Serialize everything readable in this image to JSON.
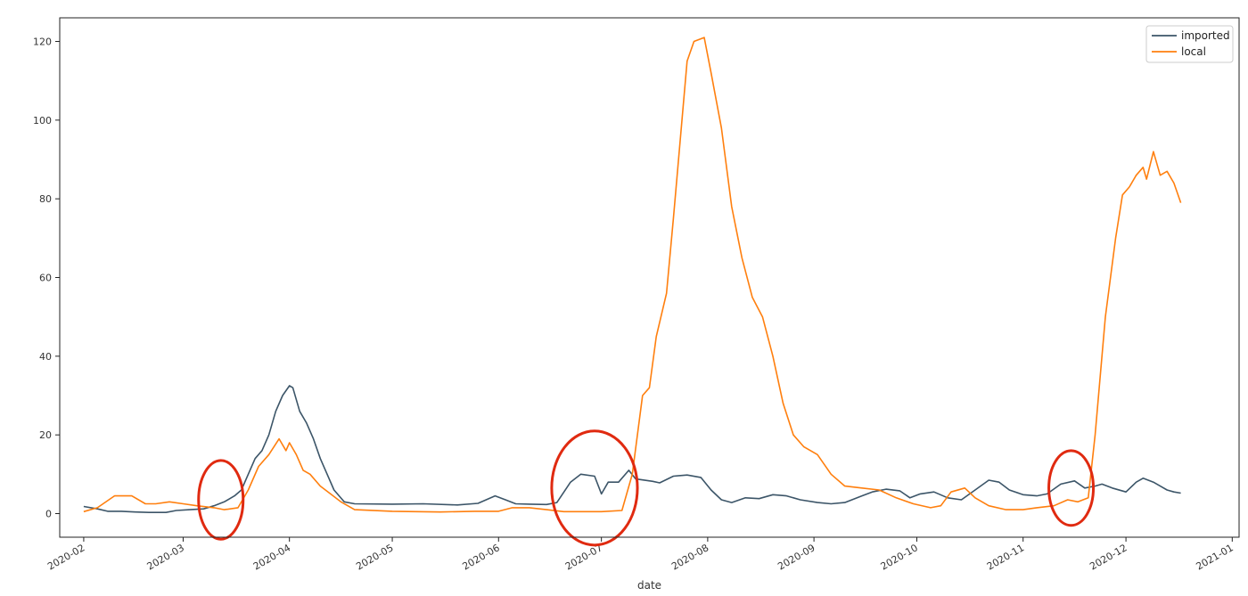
{
  "chart_data": {
    "type": "line",
    "xlabel": "date",
    "ylabel": "",
    "title": "",
    "x_ticks": [
      "2020-02",
      "2020-03",
      "2020-04",
      "2020-05",
      "2020-06",
      "2020-07",
      "2020-08",
      "2020-09",
      "2020-10",
      "2020-11",
      "2020-12",
      "2021-01"
    ],
    "y_ticks": [
      "0",
      "20",
      "40",
      "60",
      "80",
      "100",
      "120"
    ],
    "xlim": [
      "2020-01-25",
      "2021-01-03"
    ],
    "ylim": [
      -6,
      126
    ],
    "grid": false,
    "legend": "top-right",
    "series": [
      {
        "name": "imported",
        "color": "#3c5568",
        "points": [
          [
            "2020-02-01",
            1.8
          ],
          [
            "2020-02-05",
            1.2
          ],
          [
            "2020-02-08",
            0.6
          ],
          [
            "2020-02-12",
            0.6
          ],
          [
            "2020-02-16",
            0.4
          ],
          [
            "2020-02-20",
            0.3
          ],
          [
            "2020-02-25",
            0.3
          ],
          [
            "2020-02-28",
            0.8
          ],
          [
            "2020-03-03",
            1.0
          ],
          [
            "2020-03-07",
            1.2
          ],
          [
            "2020-03-10",
            2.0
          ],
          [
            "2020-03-13",
            3.0
          ],
          [
            "2020-03-16",
            4.5
          ],
          [
            "2020-03-18",
            6.0
          ],
          [
            "2020-03-20",
            10
          ],
          [
            "2020-03-22",
            14
          ],
          [
            "2020-03-24",
            16
          ],
          [
            "2020-03-26",
            20
          ],
          [
            "2020-03-28",
            26
          ],
          [
            "2020-03-30",
            30
          ],
          [
            "2020-04-01",
            32.5
          ],
          [
            "2020-04-02",
            32
          ],
          [
            "2020-04-04",
            26
          ],
          [
            "2020-04-06",
            23
          ],
          [
            "2020-04-08",
            19
          ],
          [
            "2020-04-10",
            14
          ],
          [
            "2020-04-12",
            10
          ],
          [
            "2020-04-14",
            6
          ],
          [
            "2020-04-17",
            3
          ],
          [
            "2020-04-20",
            2.5
          ],
          [
            "2020-05-01",
            2.4
          ],
          [
            "2020-05-10",
            2.5
          ],
          [
            "2020-05-20",
            2.2
          ],
          [
            "2020-05-26",
            2.6
          ],
          [
            "2020-05-31",
            4.5
          ],
          [
            "2020-06-03",
            3.5
          ],
          [
            "2020-06-06",
            2.5
          ],
          [
            "2020-06-10",
            2.4
          ],
          [
            "2020-06-15",
            2.3
          ],
          [
            "2020-06-18",
            2.8
          ],
          [
            "2020-06-22",
            8
          ],
          [
            "2020-06-25",
            10
          ],
          [
            "2020-06-29",
            9.5
          ],
          [
            "2020-07-01",
            5
          ],
          [
            "2020-07-03",
            8
          ],
          [
            "2020-07-06",
            8
          ],
          [
            "2020-07-09",
            11
          ],
          [
            "2020-07-11",
            8.8
          ],
          [
            "2020-07-16",
            8.2
          ],
          [
            "2020-07-18",
            7.8
          ],
          [
            "2020-07-22",
            9.5
          ],
          [
            "2020-07-26",
            9.8
          ],
          [
            "2020-07-30",
            9.2
          ],
          [
            "2020-08-02",
            6
          ],
          [
            "2020-08-05",
            3.5
          ],
          [
            "2020-08-08",
            2.8
          ],
          [
            "2020-08-12",
            4
          ],
          [
            "2020-08-16",
            3.8
          ],
          [
            "2020-08-20",
            4.8
          ],
          [
            "2020-08-24",
            4.5
          ],
          [
            "2020-08-28",
            3.5
          ],
          [
            "2020-09-02",
            2.8
          ],
          [
            "2020-09-06",
            2.5
          ],
          [
            "2020-09-10",
            2.8
          ],
          [
            "2020-09-15",
            4.5
          ],
          [
            "2020-09-18",
            5.5
          ],
          [
            "2020-09-22",
            6.2
          ],
          [
            "2020-09-26",
            5.8
          ],
          [
            "2020-09-29",
            4
          ],
          [
            "2020-10-02",
            5
          ],
          [
            "2020-10-06",
            5.5
          ],
          [
            "2020-10-10",
            4
          ],
          [
            "2020-10-14",
            3.5
          ],
          [
            "2020-10-18",
            6
          ],
          [
            "2020-10-22",
            8.5
          ],
          [
            "2020-10-25",
            8
          ],
          [
            "2020-10-28",
            6
          ],
          [
            "2020-11-01",
            4.8
          ],
          [
            "2020-11-05",
            4.5
          ],
          [
            "2020-11-08",
            5
          ],
          [
            "2020-11-12",
            7.5
          ],
          [
            "2020-11-16",
            8.3
          ],
          [
            "2020-11-19",
            6.5
          ],
          [
            "2020-11-22",
            7
          ],
          [
            "2020-11-24",
            7.5
          ],
          [
            "2020-11-27",
            6.5
          ],
          [
            "2020-12-01",
            5.5
          ],
          [
            "2020-12-04",
            8
          ],
          [
            "2020-12-06",
            9
          ],
          [
            "2020-12-09",
            8
          ],
          [
            "2020-12-11",
            7
          ],
          [
            "2020-12-13",
            6
          ],
          [
            "2020-12-15",
            5.5
          ],
          [
            "2020-12-17",
            5.2
          ]
        ]
      },
      {
        "name": "local",
        "color": "#ff7f0e",
        "points": [
          [
            "2020-02-01",
            0.5
          ],
          [
            "2020-02-05",
            1.5
          ],
          [
            "2020-02-10",
            4.5
          ],
          [
            "2020-02-15",
            4.5
          ],
          [
            "2020-02-19",
            2.5
          ],
          [
            "2020-02-22",
            2.5
          ],
          [
            "2020-02-26",
            3
          ],
          [
            "2020-03-01",
            2.5
          ],
          [
            "2020-03-05",
            2
          ],
          [
            "2020-03-10",
            1.5
          ],
          [
            "2020-03-13",
            1.0
          ],
          [
            "2020-03-17",
            1.5
          ],
          [
            "2020-03-20",
            6
          ],
          [
            "2020-03-23",
            12
          ],
          [
            "2020-03-26",
            15
          ],
          [
            "2020-03-29",
            19
          ],
          [
            "2020-03-31",
            16
          ],
          [
            "2020-04-01",
            18
          ],
          [
            "2020-04-03",
            15
          ],
          [
            "2020-04-05",
            11
          ],
          [
            "2020-04-07",
            10
          ],
          [
            "2020-04-10",
            7
          ],
          [
            "2020-04-13",
            5
          ],
          [
            "2020-04-16",
            3
          ],
          [
            "2020-04-20",
            1.0
          ],
          [
            "2020-05-01",
            0.6
          ],
          [
            "2020-05-15",
            0.4
          ],
          [
            "2020-05-25",
            0.6
          ],
          [
            "2020-06-01",
            0.6
          ],
          [
            "2020-06-05",
            1.5
          ],
          [
            "2020-06-10",
            1.5
          ],
          [
            "2020-06-15",
            1.0
          ],
          [
            "2020-06-20",
            0.5
          ],
          [
            "2020-07-01",
            0.5
          ],
          [
            "2020-07-07",
            0.8
          ],
          [
            "2020-07-10",
            10
          ],
          [
            "2020-07-13",
            30
          ],
          [
            "2020-07-15",
            32
          ],
          [
            "2020-07-17",
            45
          ],
          [
            "2020-07-20",
            56
          ],
          [
            "2020-07-22",
            75
          ],
          [
            "2020-07-24",
            95
          ],
          [
            "2020-07-26",
            115
          ],
          [
            "2020-07-28",
            120
          ],
          [
            "2020-07-31",
            121
          ],
          [
            "2020-08-02",
            112
          ],
          [
            "2020-08-05",
            98
          ],
          [
            "2020-08-08",
            78
          ],
          [
            "2020-08-11",
            65
          ],
          [
            "2020-08-14",
            55
          ],
          [
            "2020-08-17",
            50
          ],
          [
            "2020-08-20",
            40
          ],
          [
            "2020-08-23",
            28
          ],
          [
            "2020-08-26",
            20
          ],
          [
            "2020-08-29",
            17
          ],
          [
            "2020-09-02",
            15
          ],
          [
            "2020-09-06",
            10
          ],
          [
            "2020-09-10",
            7
          ],
          [
            "2020-09-15",
            6.5
          ],
          [
            "2020-09-20",
            6
          ],
          [
            "2020-09-25",
            4
          ],
          [
            "2020-09-30",
            2.5
          ],
          [
            "2020-10-05",
            1.5
          ],
          [
            "2020-10-08",
            2
          ],
          [
            "2020-10-11",
            5.5
          ],
          [
            "2020-10-15",
            6.5
          ],
          [
            "2020-10-18",
            4
          ],
          [
            "2020-10-22",
            2
          ],
          [
            "2020-10-27",
            1
          ],
          [
            "2020-11-01",
            1
          ],
          [
            "2020-11-05",
            1.5
          ],
          [
            "2020-11-10",
            2
          ],
          [
            "2020-11-14",
            3.5
          ],
          [
            "2020-11-17",
            3
          ],
          [
            "2020-11-20",
            4
          ],
          [
            "2020-11-22",
            20
          ],
          [
            "2020-11-25",
            50
          ],
          [
            "2020-11-28",
            70
          ],
          [
            "2020-11-30",
            81
          ],
          [
            "2020-12-02",
            83
          ],
          [
            "2020-12-04",
            86
          ],
          [
            "2020-12-06",
            88
          ],
          [
            "2020-12-07",
            85
          ],
          [
            "2020-12-09",
            92
          ],
          [
            "2020-12-11",
            86
          ],
          [
            "2020-12-13",
            87
          ],
          [
            "2020-12-15",
            84
          ],
          [
            "2020-12-17",
            79
          ]
        ]
      }
    ],
    "annotations": [
      {
        "type": "ellipse",
        "label": "",
        "color": "#e02a10",
        "center": [
          "2020-03-12",
          3.5
        ],
        "rx_days": 6.5,
        "ry": 10
      },
      {
        "type": "ellipse",
        "label": "",
        "color": "#e02a10",
        "center": [
          "2020-06-29",
          6.5
        ],
        "rx_days": 12.5,
        "ry": 14.5
      },
      {
        "type": "ellipse",
        "label": "",
        "color": "#e02a10",
        "center": [
          "2020-11-15",
          6.5
        ],
        "rx_days": 6.5,
        "ry": 9.5
      }
    ]
  }
}
